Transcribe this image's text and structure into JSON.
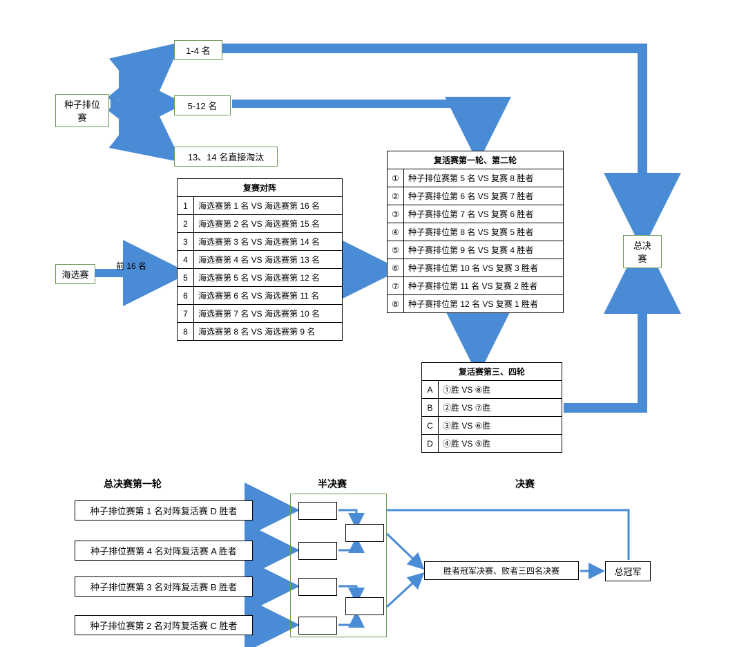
{
  "colors": {
    "arrow": "#4a8bd6",
    "box_green": "#6a9955",
    "box_black": "#000000",
    "bg": "#ffffff"
  },
  "stage_boxes": {
    "seed": {
      "label": "种子排位赛"
    },
    "open": {
      "label": "海选赛"
    },
    "rank1_4": {
      "label": "1-4 名"
    },
    "rank5_12": {
      "label": "5-12 名"
    },
    "rank13_14": {
      "label": "13、14 名直接淘汰"
    },
    "final": {
      "label": "总决赛"
    },
    "champion": {
      "label": "总冠军"
    },
    "note": {
      "label": "胜者冠军决赛、败者三四名决赛"
    }
  },
  "open_top16_label": "前 16 名",
  "table_rematch": {
    "title": "复赛对阵",
    "rows": [
      [
        "1",
        "海选赛第 1 名 VS 海选赛第 16 名"
      ],
      [
        "2",
        "海选赛第 2 名 VS 海选赛第 15 名"
      ],
      [
        "3",
        "海选赛第 3 名 VS 海选赛第 14 名"
      ],
      [
        "4",
        "海选赛第 4 名 VS 海选赛第 13 名"
      ],
      [
        "5",
        "海选赛第 5 名 VS 海选赛第 12 名"
      ],
      [
        "6",
        "海选赛第 6 名 VS 海选赛第 11 名"
      ],
      [
        "7",
        "海选赛第 7 名 VS 海选赛第 10 名"
      ],
      [
        "8",
        "海选赛第 8 名 VS 海选赛第 9 名"
      ]
    ]
  },
  "table_revive12": {
    "title": "复活赛第一轮、第二轮",
    "rows": [
      [
        "①",
        "种子排位赛第 5 名 VS 复赛 8 胜者"
      ],
      [
        "②",
        "种子赛排位第 6 名 VS 复赛 7 胜者"
      ],
      [
        "③",
        "种子赛排位第 7 名 VS 复赛 6 胜者"
      ],
      [
        "④",
        "种子赛排位第 8 名 VS 复赛 5 胜者"
      ],
      [
        "⑤",
        "种子赛排位第 9 名 VS 复赛 4 胜者"
      ],
      [
        "⑥",
        "种子赛排位第 10 名 VS 复赛 3 胜者"
      ],
      [
        "⑦",
        "种子赛排位第 11 名 VS 复赛 2 胜者"
      ],
      [
        "⑧",
        "种子赛排位第 12 名 VS 复赛 1 胜者"
      ]
    ]
  },
  "table_revive34": {
    "title": "复活赛第三、四轮",
    "rows": [
      [
        "A",
        "①胜 VS ⑧胜"
      ],
      [
        "B",
        "②胜 VS ⑦胜"
      ],
      [
        "C",
        "③胜 VS ⑥胜"
      ],
      [
        "D",
        "④胜 VS ⑤胜"
      ]
    ]
  },
  "bracket": {
    "headings": {
      "round1": "总决赛第一轮",
      "semi": "半决赛",
      "final": "决赛"
    },
    "entries": [
      "种子排位赛第 1 名对阵复活赛 D 胜者",
      "种子排位赛第 4 名对阵复活赛 A 胜者",
      "种子排位赛第 3 名对阵复活赛 B 胜者",
      "种子排位赛第 2 名对阵复活赛 C 胜者"
    ]
  },
  "layout": {
    "font_body": 13,
    "arrow_width": 14,
    "arrow_stroke": 4
  }
}
